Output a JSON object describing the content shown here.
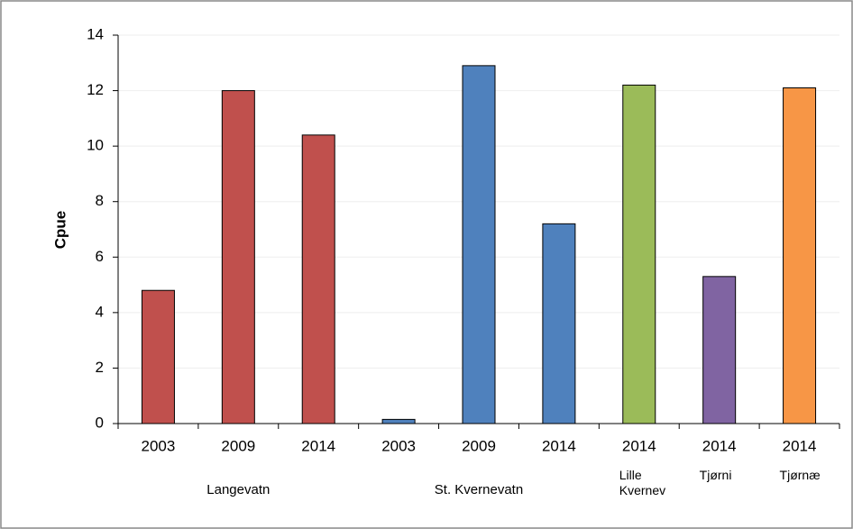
{
  "chart_data": {
    "type": "bar",
    "y_label": "Cpue",
    "groups": [
      {
        "name": "Langevatn",
        "color": "#c0504d",
        "categories": [
          "2003",
          "2009",
          "2014"
        ],
        "values": [
          4.8,
          12.0,
          10.4
        ]
      },
      {
        "name": "St. Kvernevatn",
        "color": "#4f81bd",
        "categories": [
          "2003",
          "2009",
          "2014"
        ],
        "values": [
          0.15,
          12.9,
          7.2
        ]
      },
      {
        "name": "Lille Kvernev",
        "color": "#9bbb59",
        "categories": [
          "2014"
        ],
        "values": [
          12.2
        ]
      },
      {
        "name": "Tjørni",
        "color": "#8064a2",
        "categories": [
          "2014"
        ],
        "values": [
          5.3
        ]
      },
      {
        "name": "Tjørnæ",
        "color": "#f79646",
        "categories": [
          "2014"
        ],
        "values": [
          12.1
        ]
      }
    ],
    "ylim": [
      0,
      14
    ],
    "yticks": [
      0,
      2,
      4,
      6,
      8,
      10,
      12,
      14
    ],
    "grid": true
  }
}
